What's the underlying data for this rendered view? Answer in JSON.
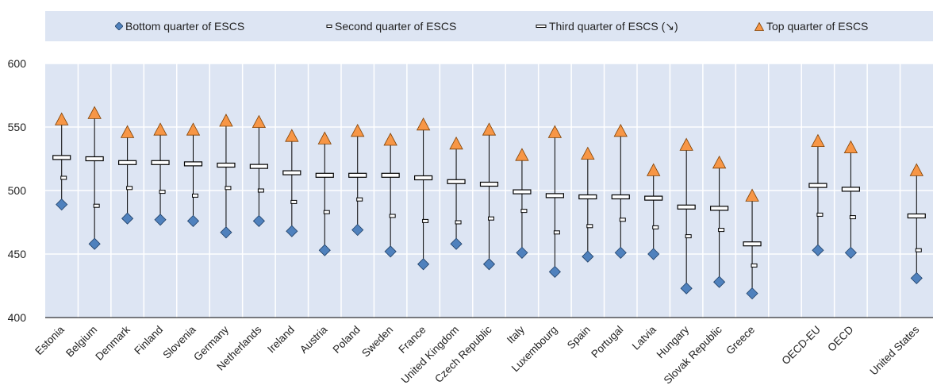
{
  "chart_data": {
    "type": "scatter",
    "title": "",
    "xlabel": "",
    "ylabel": "",
    "ylim": [
      400,
      600
    ],
    "yticks": [
      400,
      450,
      500,
      550,
      600
    ],
    "grid": true,
    "legend_position": "top",
    "categories": [
      "Estonia",
      "Belgium",
      "Denmark",
      "Finland",
      "Slovenia",
      "Germany",
      "Netherlands",
      "Ireland",
      "Austria",
      "Poland",
      "Sweden",
      "France",
      "United Kingdom",
      "Czech Republic",
      "Italy",
      "Luxembourg",
      "Spain",
      "Portugal",
      "Latvia",
      "Hungary",
      "Slovak Republic",
      "Greece",
      "",
      "OECD-EU",
      "OECD",
      "",
      "United States"
    ],
    "series": [
      {
        "name": "Bottom quarter of ESCS",
        "marker": "diamond",
        "color": "#4f81bd",
        "values": [
          489,
          458,
          478,
          477,
          476,
          467,
          476,
          468,
          453,
          469,
          452,
          442,
          458,
          442,
          451,
          436,
          448,
          451,
          450,
          423,
          428,
          419,
          null,
          453,
          451,
          null,
          431
        ]
      },
      {
        "name": "Second quarter of ESCS",
        "marker": "dash-small",
        "color": "#ffffff",
        "values": [
          510,
          488,
          502,
          499,
          496,
          502,
          500,
          491,
          483,
          493,
          480,
          476,
          475,
          478,
          484,
          467,
          472,
          477,
          471,
          464,
          469,
          441,
          null,
          481,
          479,
          null,
          453
        ]
      },
      {
        "name": "Third quarter of ESCS (↘)",
        "marker": "dash-large",
        "color": "#ffffff",
        "values": [
          526,
          525,
          522,
          522,
          521,
          520,
          519,
          514,
          512,
          512,
          512,
          510,
          507,
          505,
          499,
          496,
          495,
          495,
          494,
          487,
          486,
          458,
          null,
          504,
          501,
          null,
          480
        ]
      },
      {
        "name": "Top quarter of ESCS",
        "marker": "triangle",
        "color": "#f79646",
        "values": [
          556,
          561,
          546,
          548,
          548,
          555,
          554,
          543,
          541,
          547,
          540,
          552,
          537,
          548,
          528,
          546,
          529,
          547,
          516,
          536,
          522,
          496,
          null,
          539,
          534,
          null,
          516
        ]
      }
    ]
  }
}
